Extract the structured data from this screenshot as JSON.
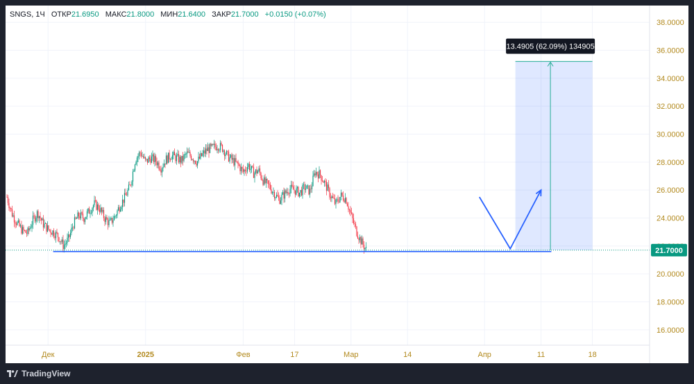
{
  "legend": {
    "symbol": "SNGS",
    "interval": "1Ч",
    "open_label": "ОТКР",
    "open": "21.6950",
    "high_label": "МАКС",
    "high": "21.8000",
    "low_label": "МИН",
    "low": "21.6400",
    "close_label": "ЗАКР",
    "close": "21.7000",
    "change": "+0.0150 (+0.07%)"
  },
  "footer": {
    "brand": "TradingView"
  },
  "colors": {
    "up": "#089981",
    "down": "#f23645",
    "axis_text": "#b2891d",
    "line_blue": "#2962ff",
    "target_green": "#22ab94",
    "last_price_bg": "#089981"
  },
  "chart_data": {
    "type": "candlestick",
    "symbol": "SNGS",
    "ylim": [
      14.9,
      39.2
    ],
    "y_ticks": [
      "16.0000",
      "18.0000",
      "20.0000",
      "22.0000",
      "24.0000",
      "26.0000",
      "28.0000",
      "30.0000",
      "32.0000",
      "34.0000",
      "36.0000",
      "38.0000"
    ],
    "x_ticks": [
      "Дек",
      "2025",
      "Фев",
      "17",
      "Мар",
      "14",
      "Апр",
      "11",
      "18"
    ],
    "x_tick_index": [
      8,
      27,
      46,
      56,
      67,
      78,
      93,
      104,
      114
    ],
    "bold_ticks": [
      "2025"
    ],
    "last_price": "21.7000",
    "last_price_value": 21.7,
    "close_series": [
      25.5,
      24.3,
      23.6,
      23.1,
      22.9,
      23.8,
      24.4,
      23.6,
      23.2,
      23.0,
      22.7,
      22.0,
      22.5,
      23.6,
      24.2,
      24.0,
      24.5,
      25.0,
      24.7,
      24.0,
      23.6,
      24.1,
      24.9,
      25.5,
      26.3,
      28.2,
      28.7,
      28.0,
      28.3,
      28.1,
      27.6,
      28.2,
      28.5,
      28.3,
      28.1,
      28.6,
      28.4,
      28.0,
      28.5,
      28.9,
      29.0,
      29.2,
      29.0,
      28.4,
      28.1,
      27.8,
      27.3,
      27.8,
      27.2,
      27.4,
      26.6,
      26.3,
      25.8,
      25.3,
      25.7,
      26.1,
      26.0,
      25.8,
      26.2,
      25.9,
      27.3,
      27.1,
      26.4,
      25.6,
      25.0,
      25.6,
      25.4,
      24.2,
      23.1,
      22.3,
      21.7
    ],
    "support_line": {
      "from_index": 9,
      "to_index": 106,
      "value": 21.6
    },
    "projection_path": [
      {
        "i": 92,
        "v": 25.5
      },
      {
        "i": 98,
        "v": 21.8
      },
      {
        "i": 104,
        "v": 26.0
      }
    ],
    "target_range": {
      "from_index": 99,
      "to_index": 114,
      "low": 21.7,
      "high": 35.2,
      "label": "13.4905 (62.09%) 134905"
    }
  }
}
